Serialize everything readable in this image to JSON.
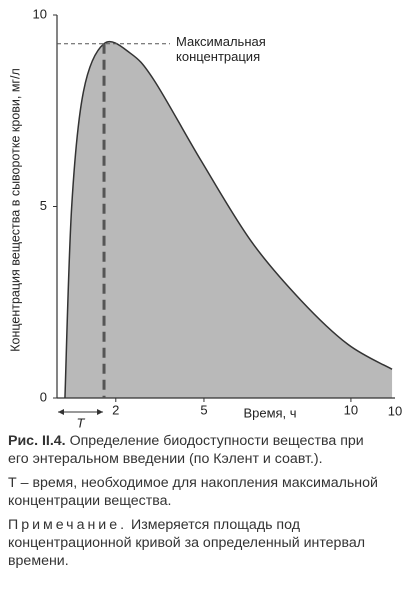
{
  "chart_data": {
    "type": "area",
    "y_label": "Концентрация вещества в сыворотке крови, мг/л",
    "x_label": "Время, ч",
    "x": [
      0.27,
      0.5,
      0.9,
      1.6,
      2.5,
      3.3,
      4.9,
      6.6,
      8.3,
      9.9,
      11.4
    ],
    "values": [
      0,
      5,
      8,
      9.25,
      9.0,
      8.3,
      6.2,
      4.1,
      2.55,
      1.4,
      0.75
    ],
    "color": "#b9b9b9",
    "xlim": [
      0,
      11.5
    ],
    "ylim": [
      0,
      10
    ],
    "xticks": [
      2,
      5,
      10
    ],
    "yticks": [
      0,
      5,
      10
    ],
    "peak_label": [
      "Максимальная",
      "концентрация"
    ],
    "t_label": "T",
    "corner_label": "10"
  },
  "caption": {
    "figure": "Рис. II.4.",
    "text": "Определение биодоступности вещества при его энтеральном введении (по Кэлент и соавт.).",
    "definition": "Т – время, необходимое для накопления максимальной концентрации вещества.",
    "note_label": "Примечание.",
    "note": "Измеряется площадь под концентрационной кривой за определенный интервал времени."
  }
}
